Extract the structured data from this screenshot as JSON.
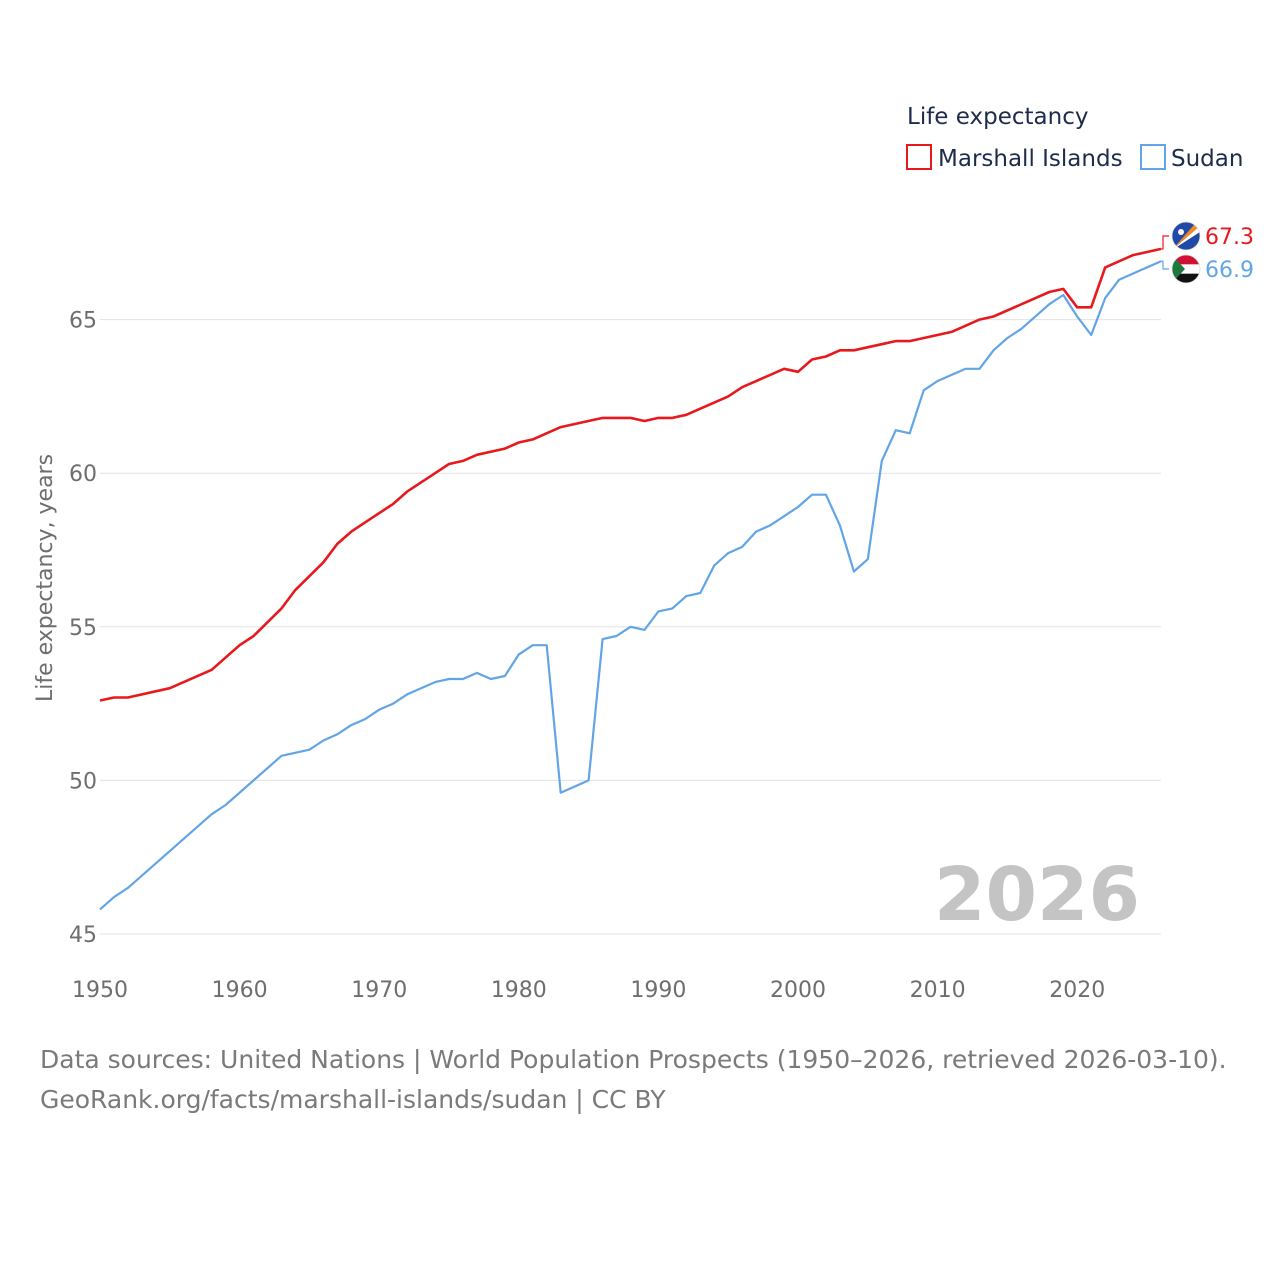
{
  "chart_data": {
    "type": "line",
    "ylabel": "Life expectancy, years",
    "legend_title": "Life expectancy",
    "legend_position": "top-right",
    "grid": true,
    "xlim": [
      1950,
      2026
    ],
    "ylim": [
      45,
      68
    ],
    "x_ticks": [
      1950,
      1960,
      1970,
      1980,
      1990,
      2000,
      2010,
      2020
    ],
    "y_ticks": [
      45,
      50,
      55,
      60,
      65
    ],
    "year_label": "2026",
    "series": [
      {
        "name": "Marshall Islands",
        "color": "#e8191c",
        "end_label": "67.3",
        "flag_icon": "marshall-islands-flag-icon",
        "points": [
          [
            1950,
            52.6
          ],
          [
            1951,
            52.7
          ],
          [
            1952,
            52.7
          ],
          [
            1955,
            53.0
          ],
          [
            1958,
            53.6
          ],
          [
            1960,
            54.4
          ],
          [
            1961,
            54.7
          ],
          [
            1963,
            55.6
          ],
          [
            1964,
            56.2
          ],
          [
            1966,
            57.1
          ],
          [
            1967,
            57.7
          ],
          [
            1968,
            58.1
          ],
          [
            1970,
            58.7
          ],
          [
            1971,
            59.0
          ],
          [
            1972,
            59.4
          ],
          [
            1974,
            60.0
          ],
          [
            1975,
            60.3
          ],
          [
            1976,
            60.4
          ],
          [
            1977,
            60.6
          ],
          [
            1979,
            60.8
          ],
          [
            1980,
            61.0
          ],
          [
            1981,
            61.1
          ],
          [
            1983,
            61.5
          ],
          [
            1986,
            61.8
          ],
          [
            1988,
            61.8
          ],
          [
            1989,
            61.7
          ],
          [
            1990,
            61.8
          ],
          [
            1991,
            61.8
          ],
          [
            1992,
            61.9
          ],
          [
            1995,
            62.5
          ],
          [
            1996,
            62.8
          ],
          [
            1999,
            63.4
          ],
          [
            2000,
            63.3
          ],
          [
            2001,
            63.7
          ],
          [
            2002,
            63.8
          ],
          [
            2003,
            64.0
          ],
          [
            2004,
            64.0
          ],
          [
            2007,
            64.3
          ],
          [
            2008,
            64.3
          ],
          [
            2011,
            64.6
          ],
          [
            2013,
            65.0
          ],
          [
            2014,
            65.1
          ],
          [
            2018,
            65.9
          ],
          [
            2019,
            66.0
          ],
          [
            2020,
            65.4
          ],
          [
            2021,
            65.4
          ],
          [
            2022,
            66.7
          ],
          [
            2024,
            67.1
          ],
          [
            2026,
            67.3
          ]
        ]
      },
      {
        "name": "Sudan",
        "color": "#62a5e6",
        "end_label": "66.9",
        "flag_icon": "sudan-flag-icon",
        "points": [
          [
            1950,
            45.8
          ],
          [
            1951,
            46.2
          ],
          [
            1952,
            46.5
          ],
          [
            1955,
            47.7
          ],
          [
            1958,
            48.9
          ],
          [
            1959,
            49.2
          ],
          [
            1963,
            50.8
          ],
          [
            1965,
            51.0
          ],
          [
            1966,
            51.3
          ],
          [
            1967,
            51.5
          ],
          [
            1968,
            51.8
          ],
          [
            1969,
            52.0
          ],
          [
            1970,
            52.3
          ],
          [
            1971,
            52.5
          ],
          [
            1972,
            52.8
          ],
          [
            1974,
            53.2
          ],
          [
            1975,
            53.3
          ],
          [
            1976,
            53.3
          ],
          [
            1977,
            53.5
          ],
          [
            1978,
            53.3
          ],
          [
            1979,
            53.4
          ],
          [
            1980,
            54.1
          ],
          [
            1981,
            54.4
          ],
          [
            1982,
            54.4
          ],
          [
            1983,
            49.6
          ],
          [
            1985,
            50.0
          ],
          [
            1986,
            54.6
          ],
          [
            1987,
            54.7
          ],
          [
            1988,
            55.0
          ],
          [
            1989,
            54.9
          ],
          [
            1990,
            55.5
          ],
          [
            1991,
            55.6
          ],
          [
            1992,
            56.0
          ],
          [
            1993,
            56.1
          ],
          [
            1994,
            57.0
          ],
          [
            1995,
            57.4
          ],
          [
            1996,
            57.6
          ],
          [
            1997,
            58.1
          ],
          [
            1998,
            58.3
          ],
          [
            2000,
            58.9
          ],
          [
            2001,
            59.3
          ],
          [
            2002,
            59.3
          ],
          [
            2003,
            58.3
          ],
          [
            2004,
            56.8
          ],
          [
            2005,
            57.2
          ],
          [
            2006,
            60.4
          ],
          [
            2007,
            61.4
          ],
          [
            2008,
            61.3
          ],
          [
            2009,
            62.7
          ],
          [
            2010,
            63.0
          ],
          [
            2012,
            63.4
          ],
          [
            2013,
            63.4
          ],
          [
            2014,
            64.0
          ],
          [
            2015,
            64.4
          ],
          [
            2016,
            64.7
          ],
          [
            2018,
            65.5
          ],
          [
            2019,
            65.8
          ],
          [
            2020,
            65.1
          ],
          [
            2021,
            64.5
          ],
          [
            2022,
            65.7
          ],
          [
            2023,
            66.3
          ],
          [
            2026,
            66.9
          ]
        ]
      }
    ]
  },
  "footer": {
    "line1": "Data sources: United Nations | World Population Prospects (1950–2026, retrieved 2026-03-10).",
    "line2": "GeoRank.org/facts/marshall-islands/sudan | CC BY"
  }
}
